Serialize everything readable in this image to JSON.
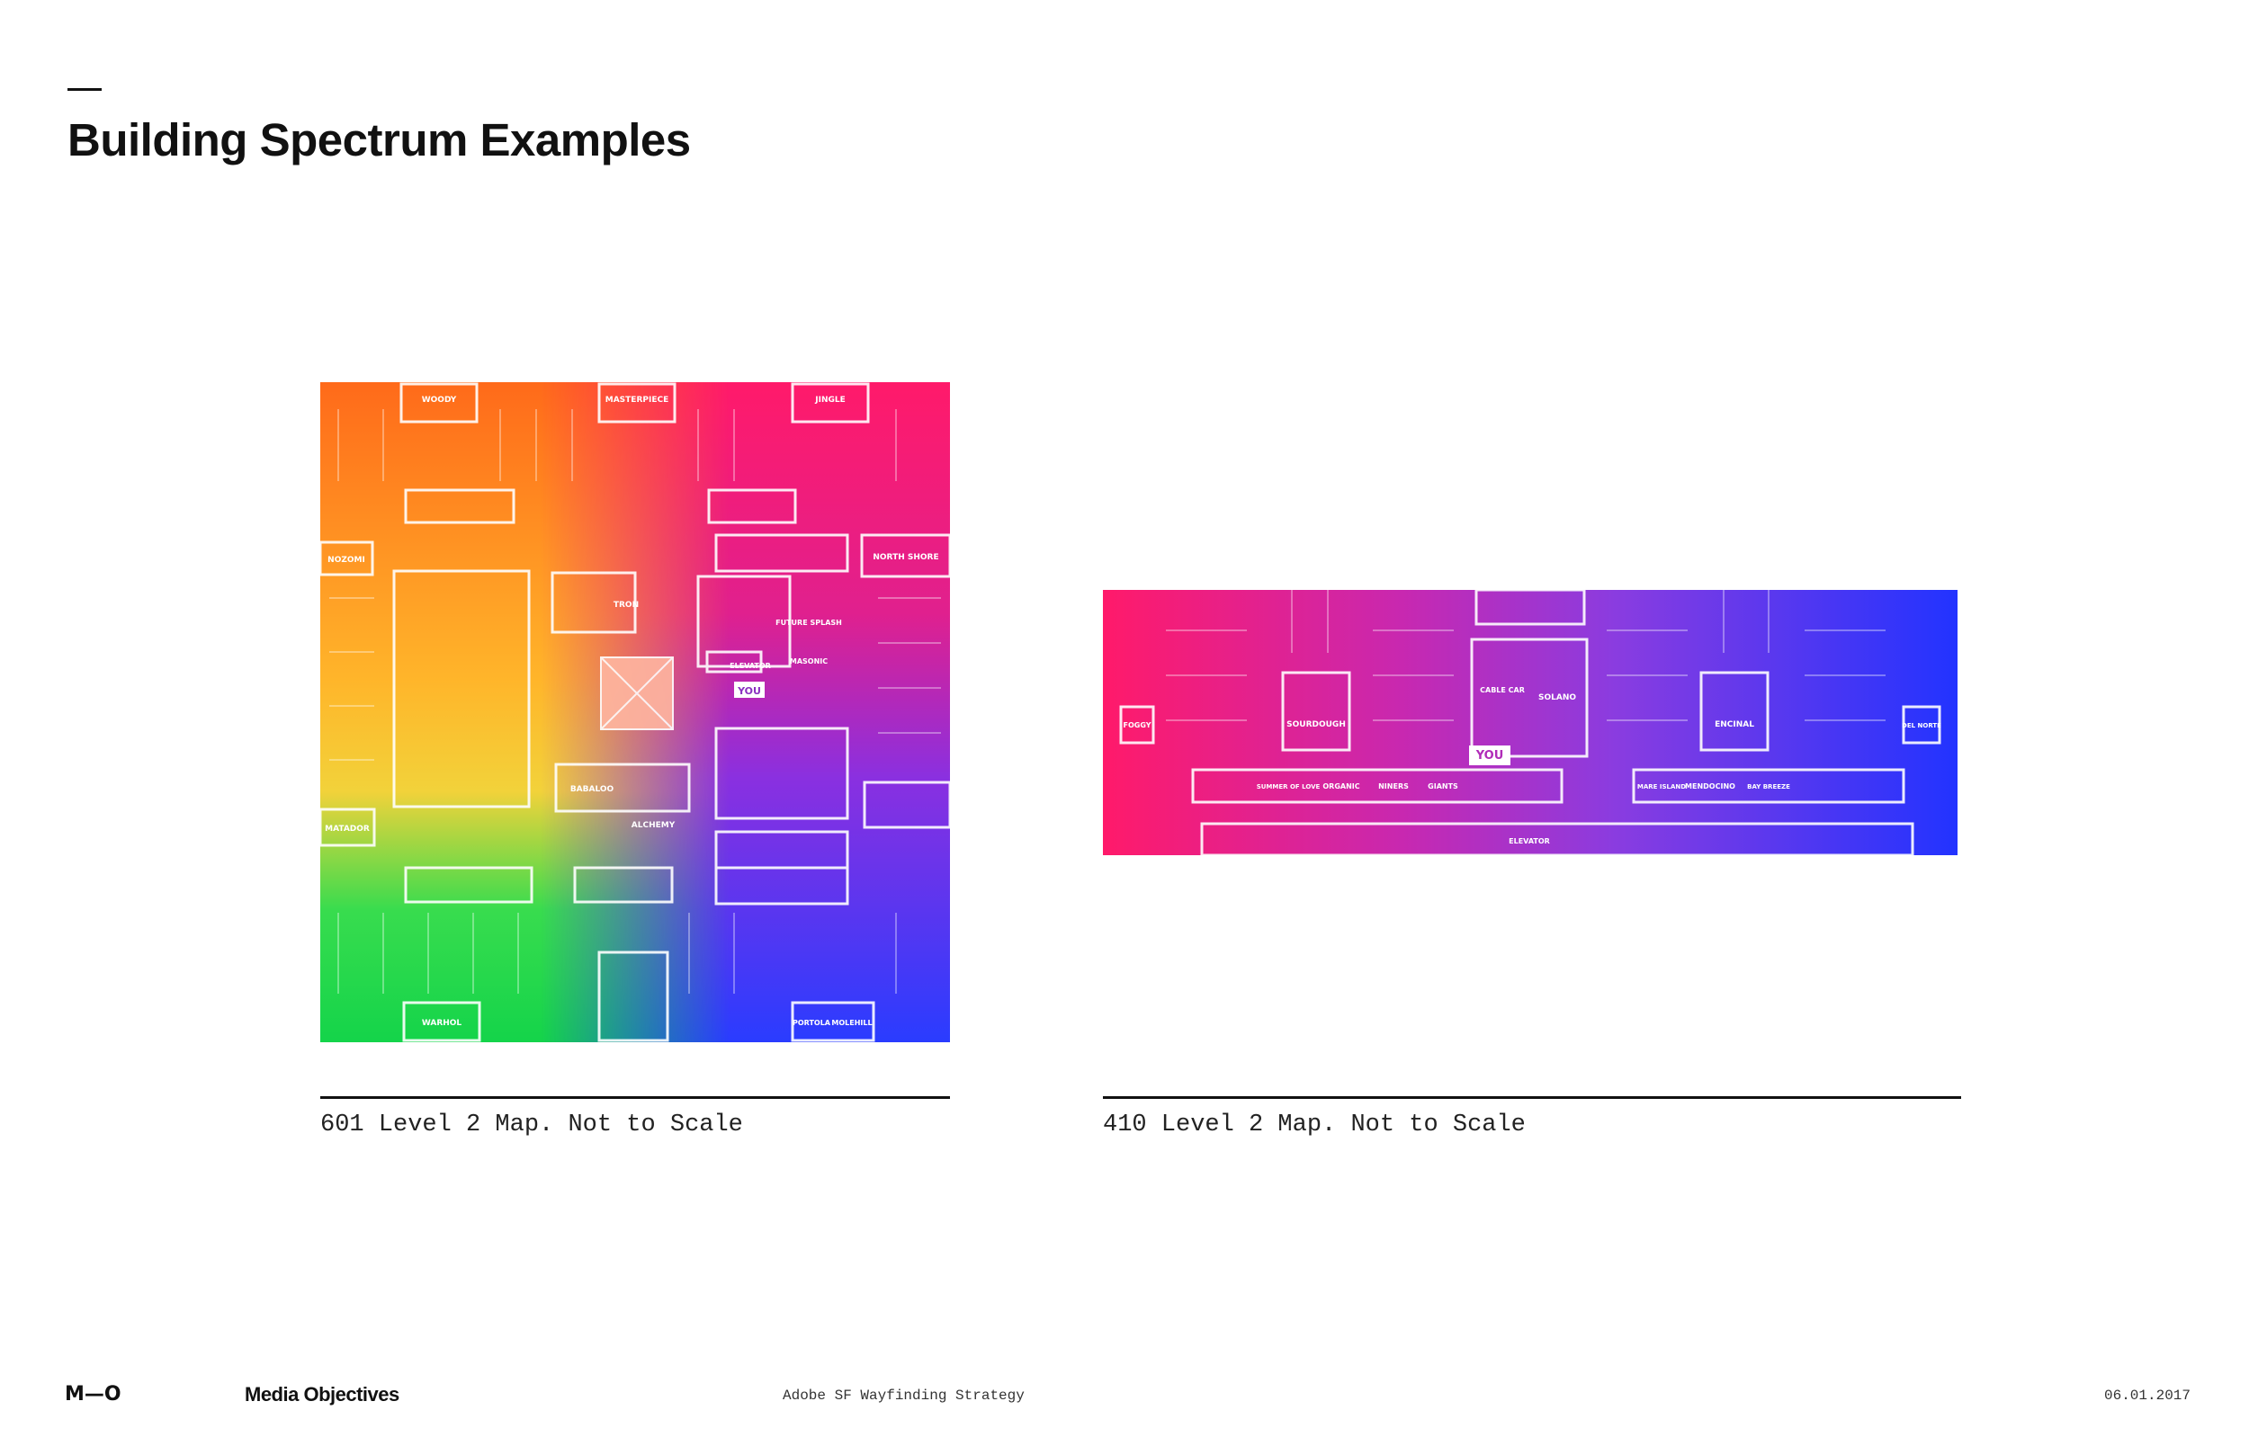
{
  "header": {
    "title": "Building Spectrum Examples"
  },
  "maps": [
    {
      "caption": "601 Level 2 Map. Not to Scale",
      "rooms": {
        "woody": "WOODY",
        "masterpiece": "MASTERPIECE",
        "jingle": "JINGLE",
        "nozomi": "NOZOMI",
        "north_shore": "NORTH SHORE",
        "tron": "TRON",
        "future_splash": "FUTURE SPLASH",
        "elevator": "ELEVATOR",
        "masonic": "MASONIC",
        "babaloo": "BABALOO",
        "alchemy": "ALCHEMY",
        "matador": "MATADOR",
        "warhol": "WARHOL",
        "portola": "PORTOLA",
        "molehill": "MOLEHILL",
        "you": "YOU"
      }
    },
    {
      "caption": "410 Level 2 Map. Not to Scale",
      "rooms": {
        "foggy": "FOGGY",
        "sourdough": "SOURDOUGH",
        "cable_car": "CABLE CAR",
        "solano": "SOLANO",
        "encinal": "ENCINAL",
        "del_norte": "DEL NORTE",
        "summer_of_love": "SUMMER OF LOVE",
        "organic": "ORGANIC",
        "niners": "NINERS",
        "giants": "GIANTS",
        "mare_island": "MARE ISLAND",
        "mendocino": "MENDOCINO",
        "bay_breeze": "BAY BREEZE",
        "elevator": "ELEVATOR",
        "you": "YOU"
      }
    }
  ],
  "footer": {
    "logo": "M—O",
    "brand": "Media Objectives",
    "project": "Adobe SF Wayfinding Strategy",
    "date": "06.01.2017"
  }
}
